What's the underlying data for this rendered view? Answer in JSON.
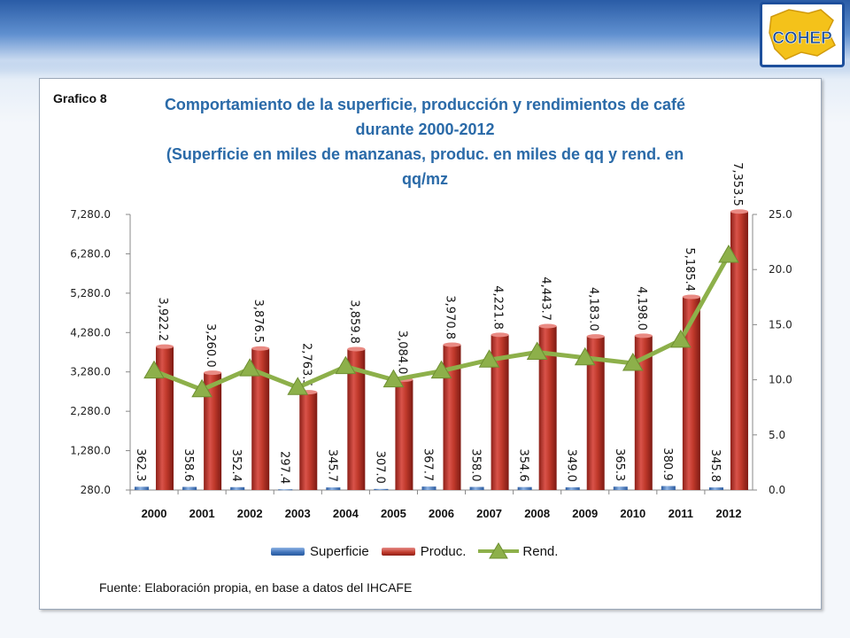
{
  "header": {
    "logo_text": "COHEP"
  },
  "slide": {
    "chart_label": "Grafico 8",
    "title_lines": [
      "Comportamiento de la superficie, producción y rendimientos de  café",
      "durante 2000-2012",
      "(Superficie en miles de manzanas, produc. en miles de qq  y rend. en",
      "qq/mz"
    ],
    "source": "Fuente: Elaboración propia, en base a datos del IHCAFE"
  },
  "colors": {
    "superficie": "#3d71b8",
    "produc": "#c0392b",
    "rend": "#8db04a",
    "title": "#2a6aa8"
  },
  "chart_data": {
    "type": "bar",
    "categories": [
      "2000",
      "2001",
      "2002",
      "2003",
      "2004",
      "2005",
      "2006",
      "2007",
      "2008",
      "2009",
      "2010",
      "2011",
      "2012"
    ],
    "series": [
      {
        "name": "Superficie",
        "axis": "left",
        "kind": "bar",
        "values": [
          362.3,
          358.6,
          352.4,
          297.4,
          345.7,
          307.0,
          367.7,
          358.0,
          354.6,
          349.0,
          365.3,
          380.9,
          345.8
        ],
        "labels": [
          "362.3",
          "358.6",
          "352.4",
          "297.4",
          "345.7",
          "307.0",
          "367.7",
          "358.0",
          "354.6",
          "349.0",
          "365.3",
          "380.9",
          "345.8"
        ]
      },
      {
        "name": "Produc.",
        "axis": "left",
        "kind": "bar",
        "values": [
          3922.2,
          3260.0,
          3876.5,
          2763.5,
          3859.8,
          3084.0,
          3970.8,
          4221.8,
          4443.7,
          4183.0,
          4198.0,
          5185.4,
          7353.5
        ],
        "labels": [
          "3,922.2",
          "3,260.0",
          "3,876.5",
          "2,763.5",
          "3,859.8",
          "3,084.0",
          "3,970.8",
          "4,221.8",
          "4,443.7",
          "4,183.0",
          "4,198.0",
          "5,185.4",
          "7,353.5"
        ]
      },
      {
        "name": "Rend.",
        "axis": "right",
        "kind": "line",
        "values": [
          10.8,
          9.1,
          11.0,
          9.3,
          11.2,
          10.0,
          10.8,
          11.8,
          12.5,
          12.0,
          11.5,
          13.6,
          21.3
        ]
      }
    ],
    "y_left": {
      "min": 280,
      "max": 7280,
      "ticks": [
        280,
        1280,
        2280,
        3280,
        4280,
        5280,
        6280,
        7280
      ],
      "tick_labels": [
        "280.0",
        "1,280.0",
        "2,280.0",
        "3,280.0",
        "4,280.0",
        "5,280.0",
        "6,280.0",
        "7,280.0"
      ]
    },
    "y_right": {
      "min": 0,
      "max": 25,
      "ticks": [
        0,
        5,
        10,
        15,
        20,
        25
      ],
      "tick_labels": [
        "0.0",
        "5.0",
        "10.0",
        "15.0",
        "20.0",
        "25.0"
      ]
    },
    "legend_position": "bottom",
    "grid": false
  }
}
